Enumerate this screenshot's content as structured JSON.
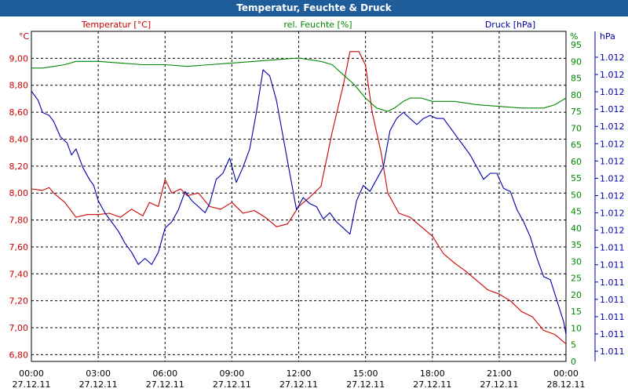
{
  "window": {
    "title": "Temperatur, Feuchte & Druck"
  },
  "chart_data": {
    "type": "line",
    "title": "Temperatur, Feuchte & Druck",
    "grid": true,
    "x_ticks": [
      {
        "time": "00:00",
        "date": "27.12.11"
      },
      {
        "time": "03:00",
        "date": "27.12.11"
      },
      {
        "time": "06:00",
        "date": "27.12.11"
      },
      {
        "time": "09:00",
        "date": "27.12.11"
      },
      {
        "time": "12:00",
        "date": "27.12.11"
      },
      {
        "time": "15:00",
        "date": "27.12.11"
      },
      {
        "time": "18:00",
        "date": "27.12.11"
      },
      {
        "time": "21:00",
        "date": "27.12.11"
      },
      {
        "time": "00:00",
        "date": "28.12.11"
      }
    ],
    "xlim": [
      0,
      24
    ],
    "axes": {
      "temperature": {
        "label": "Temperatur [°C]",
        "unit": "°C",
        "color": "#cc0000",
        "ylim": [
          6.75,
          9.2
        ],
        "ticks": [
          "6,80",
          "7,00",
          "7,20",
          "7,40",
          "7,60",
          "7,80",
          "8,00",
          "8,20",
          "8,40",
          "8,60",
          "8,80",
          "9,00"
        ]
      },
      "humidity": {
        "label": "rel. Feuchte [%]",
        "unit": "%",
        "color": "#008800",
        "ylim": [
          0,
          99
        ],
        "ticks": [
          "0",
          "5",
          "10",
          "15",
          "20",
          "25",
          "30",
          "35",
          "40",
          "45",
          "50",
          "55",
          "60",
          "65",
          "70",
          "75",
          "80",
          "85",
          "90",
          "95"
        ]
      },
      "pressure": {
        "label": "Druck [hPa]",
        "unit": "hPa",
        "color": "#0000aa",
        "ticks": [
          "1.011",
          "1.011",
          "1.011",
          "1.011",
          "1.011",
          "1.011",
          "1.011",
          "1.012",
          "1.012",
          "1.012",
          "1.012",
          "1.012",
          "1.012",
          "1.012",
          "1.012",
          "1.012",
          "1.012",
          "1.012"
        ]
      }
    },
    "series": [
      {
        "name": "Temperatur [°C]",
        "axis": "temperature",
        "color": "#cc0000",
        "x": [
          0,
          0.5,
          0.8,
          1,
          1.5,
          2,
          2.5,
          3,
          3.5,
          4,
          4.5,
          5,
          5.3,
          5.7,
          6,
          6.3,
          6.7,
          7,
          7.5,
          8,
          8.5,
          9,
          9.5,
          10,
          10.5,
          11,
          11.5,
          12,
          12.5,
          13,
          13.5,
          14,
          14.3,
          14.7,
          15,
          15.3,
          15.7,
          16,
          16.5,
          17,
          17.5,
          18,
          18.5,
          19,
          19.5,
          20,
          20.5,
          21,
          21.5,
          22,
          22.5,
          23,
          23.5,
          24
        ],
        "values": [
          8.03,
          8.02,
          8.04,
          8.0,
          7.93,
          7.82,
          7.84,
          7.84,
          7.85,
          7.82,
          7.88,
          7.83,
          7.93,
          7.9,
          8.1,
          8.0,
          8.03,
          7.98,
          8.0,
          7.9,
          7.88,
          7.93,
          7.85,
          7.87,
          7.82,
          7.75,
          7.77,
          7.9,
          7.97,
          8.05,
          8.45,
          8.8,
          9.05,
          9.05,
          8.95,
          8.6,
          8.3,
          8.0,
          7.85,
          7.82,
          7.75,
          7.68,
          7.55,
          7.48,
          7.42,
          7.35,
          7.28,
          7.25,
          7.2,
          7.12,
          7.08,
          6.98,
          6.95,
          6.88
        ]
      },
      {
        "name": "rel. Feuchte [%]",
        "axis": "humidity",
        "color": "#008800",
        "x": [
          0,
          0.5,
          1,
          1.5,
          2,
          3,
          4,
          5,
          6,
          7,
          8,
          9,
          10,
          11,
          12,
          13,
          13.5,
          14,
          14.5,
          15,
          15.5,
          16,
          16.3,
          16.7,
          17,
          17.5,
          18,
          18.5,
          19,
          19.5,
          20,
          21,
          22,
          23,
          23.5,
          24
        ],
        "values": [
          88,
          88,
          88.5,
          89,
          90,
          90,
          89.5,
          89,
          89,
          88.5,
          89,
          89.5,
          90,
          90.5,
          91,
          90,
          89,
          86,
          83,
          79,
          76,
          75,
          76,
          78,
          79,
          79,
          78,
          78,
          78,
          77.5,
          77,
          76.5,
          76,
          76,
          77,
          79
        ]
      },
      {
        "name": "Druck [hPa]",
        "axis": "pressure",
        "color": "#0000aa",
        "unit_note": "relative level 0-100",
        "x": [
          0,
          0.3,
          0.5,
          0.8,
          1,
          1.3,
          1.6,
          1.8,
          2,
          2.3,
          2.6,
          2.8,
          3,
          3.3,
          3.6,
          3.9,
          4.2,
          4.5,
          4.8,
          5.1,
          5.4,
          5.7,
          6,
          6.3,
          6.6,
          6.9,
          7.2,
          7.5,
          7.8,
          8,
          8.3,
          8.6,
          8.9,
          9.2,
          9.5,
          9.8,
          10.1,
          10.4,
          10.7,
          11,
          11.3,
          11.6,
          11.9,
          12.2,
          12.5,
          12.8,
          13.1,
          13.4,
          13.7,
          14,
          14.3,
          14.6,
          14.9,
          15.2,
          15.5,
          15.8,
          16.1,
          16.4,
          16.7,
          17,
          17.3,
          17.6,
          17.9,
          18.2,
          18.5,
          18.8,
          19.1,
          19.4,
          19.7,
          20,
          20.3,
          20.6,
          20.9,
          21.2,
          21.5,
          21.8,
          22.1,
          22.4,
          22.7,
          23,
          23.3,
          23.6,
          23.9,
          24
        ],
        "values": [
          85,
          82,
          78,
          77,
          75,
          70,
          68,
          64,
          66,
          60,
          56,
          54,
          49,
          45,
          42,
          39,
          35,
          32,
          28,
          30,
          28,
          32,
          40,
          42,
          46,
          52,
          49,
          47,
          45,
          48,
          56,
          58,
          63,
          55,
          60,
          66,
          78,
          92,
          90,
          82,
          70,
          58,
          46,
          50,
          48,
          47,
          43,
          45,
          42,
          40,
          38,
          49,
          54,
          52,
          56,
          60,
          72,
          76,
          78,
          76,
          74,
          76,
          77,
          76,
          76,
          73,
          70,
          67,
          64,
          60,
          56,
          58,
          58,
          53,
          52,
          46,
          42,
          37,
          30,
          24,
          23,
          16,
          9,
          5
        ]
      }
    ]
  }
}
